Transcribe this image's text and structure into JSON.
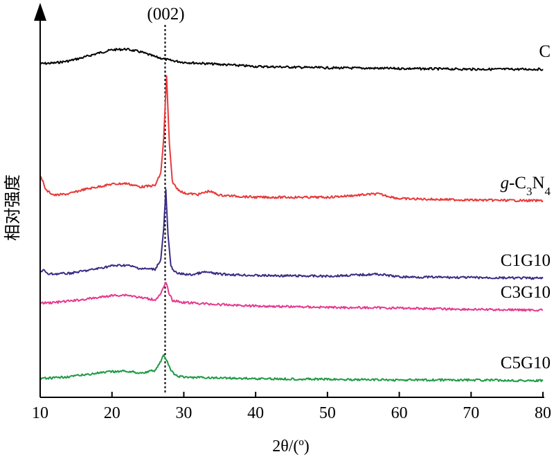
{
  "chart_data": {
    "type": "line",
    "title": "",
    "xlabel": "2θ/(º)",
    "ylabel": "相对强度",
    "xlim": [
      10,
      80
    ],
    "xticks": [
      10,
      20,
      30,
      40,
      50,
      60,
      70,
      80
    ],
    "yticks_shown": false,
    "annotation": {
      "text": "(002)",
      "x": 27.4
    },
    "series": [
      {
        "name": "C",
        "label_parts": [
          {
            "t": "C"
          }
        ],
        "color": "#000000",
        "points": [
          [
            10,
            92
          ],
          [
            12,
            91
          ],
          [
            14,
            88
          ],
          [
            16,
            83
          ],
          [
            18,
            77
          ],
          [
            20,
            72
          ],
          [
            22,
            71
          ],
          [
            24,
            75
          ],
          [
            26,
            82
          ],
          [
            28,
            87
          ],
          [
            30,
            90
          ],
          [
            35,
            93
          ],
          [
            40,
            96
          ],
          [
            50,
            98
          ],
          [
            60,
            99
          ],
          [
            70,
            100
          ],
          [
            80,
            100
          ]
        ]
      },
      {
        "name": "g-C3N4",
        "label_parts": [
          {
            "t": "g",
            "it": true
          },
          {
            "t": "-C"
          },
          {
            "t": "3",
            "sub": true
          },
          {
            "t": "N"
          },
          {
            "t": "4",
            "sub": true
          }
        ],
        "color": "#e8393a",
        "points": [
          [
            10,
            255
          ],
          [
            10.4,
            262
          ],
          [
            10.8,
            275
          ],
          [
            12,
            282
          ],
          [
            14,
            280
          ],
          [
            16,
            274
          ],
          [
            18,
            270
          ],
          [
            20,
            266
          ],
          [
            22,
            265
          ],
          [
            24,
            270
          ],
          [
            26,
            268
          ],
          [
            26.8,
            250
          ],
          [
            27.2,
            200
          ],
          [
            27.6,
            110
          ],
          [
            28.0,
            210
          ],
          [
            28.4,
            262
          ],
          [
            29,
            272
          ],
          [
            30,
            279
          ],
          [
            32,
            281
          ],
          [
            33.5,
            276
          ],
          [
            35,
            282
          ],
          [
            40,
            285
          ],
          [
            50,
            285
          ],
          [
            57,
            280
          ],
          [
            60,
            287
          ],
          [
            70,
            289
          ],
          [
            80,
            290
          ]
        ]
      },
      {
        "name": "C1G10",
        "label_parts": [
          {
            "t": "C1G10"
          }
        ],
        "color": "#3b2c84",
        "points": [
          [
            10,
            393
          ],
          [
            10.5,
            390
          ],
          [
            11,
            396
          ],
          [
            14,
            395
          ],
          [
            17,
            390
          ],
          [
            20,
            384
          ],
          [
            22,
            383
          ],
          [
            24,
            388
          ],
          [
            26,
            389
          ],
          [
            26.8,
            375
          ],
          [
            27.2,
            330
          ],
          [
            27.5,
            275
          ],
          [
            27.8,
            340
          ],
          [
            28.2,
            385
          ],
          [
            29,
            395
          ],
          [
            31,
            397
          ],
          [
            33,
            393
          ],
          [
            35,
            396
          ],
          [
            40,
            398
          ],
          [
            50,
            399
          ],
          [
            57,
            396
          ],
          [
            60,
            400
          ],
          [
            70,
            401
          ],
          [
            80,
            402
          ]
        ]
      },
      {
        "name": "C3G10",
        "label_parts": [
          {
            "t": "C3G10"
          }
        ],
        "color": "#e6398f",
        "points": [
          [
            10,
            438
          ],
          [
            12,
            437
          ],
          [
            15,
            434
          ],
          [
            18,
            430
          ],
          [
            20,
            427
          ],
          [
            22,
            426
          ],
          [
            24,
            430
          ],
          [
            26,
            433
          ],
          [
            26.8,
            425
          ],
          [
            27.2,
            415
          ],
          [
            27.5,
            408
          ],
          [
            27.9,
            422
          ],
          [
            28.4,
            434
          ],
          [
            30,
            437
          ],
          [
            35,
            440
          ],
          [
            40,
            442
          ],
          [
            50,
            444
          ],
          [
            60,
            445
          ],
          [
            70,
            447
          ],
          [
            80,
            448
          ]
        ]
      },
      {
        "name": "C5G10",
        "label_parts": [
          {
            "t": "C5G10"
          }
        ],
        "color": "#1e9a46",
        "points": [
          [
            10,
            547
          ],
          [
            12,
            546
          ],
          [
            15,
            543
          ],
          [
            18,
            539
          ],
          [
            20,
            537
          ],
          [
            22,
            536
          ],
          [
            24,
            539
          ],
          [
            26,
            535
          ],
          [
            26.8,
            522
          ],
          [
            27.2,
            513
          ],
          [
            27.6,
            520
          ],
          [
            28.2,
            536
          ],
          [
            29,
            543
          ],
          [
            30,
            545
          ],
          [
            35,
            546
          ],
          [
            40,
            547
          ],
          [
            50,
            548
          ],
          [
            60,
            549
          ],
          [
            70,
            549
          ],
          [
            80,
            550
          ]
        ]
      }
    ]
  }
}
